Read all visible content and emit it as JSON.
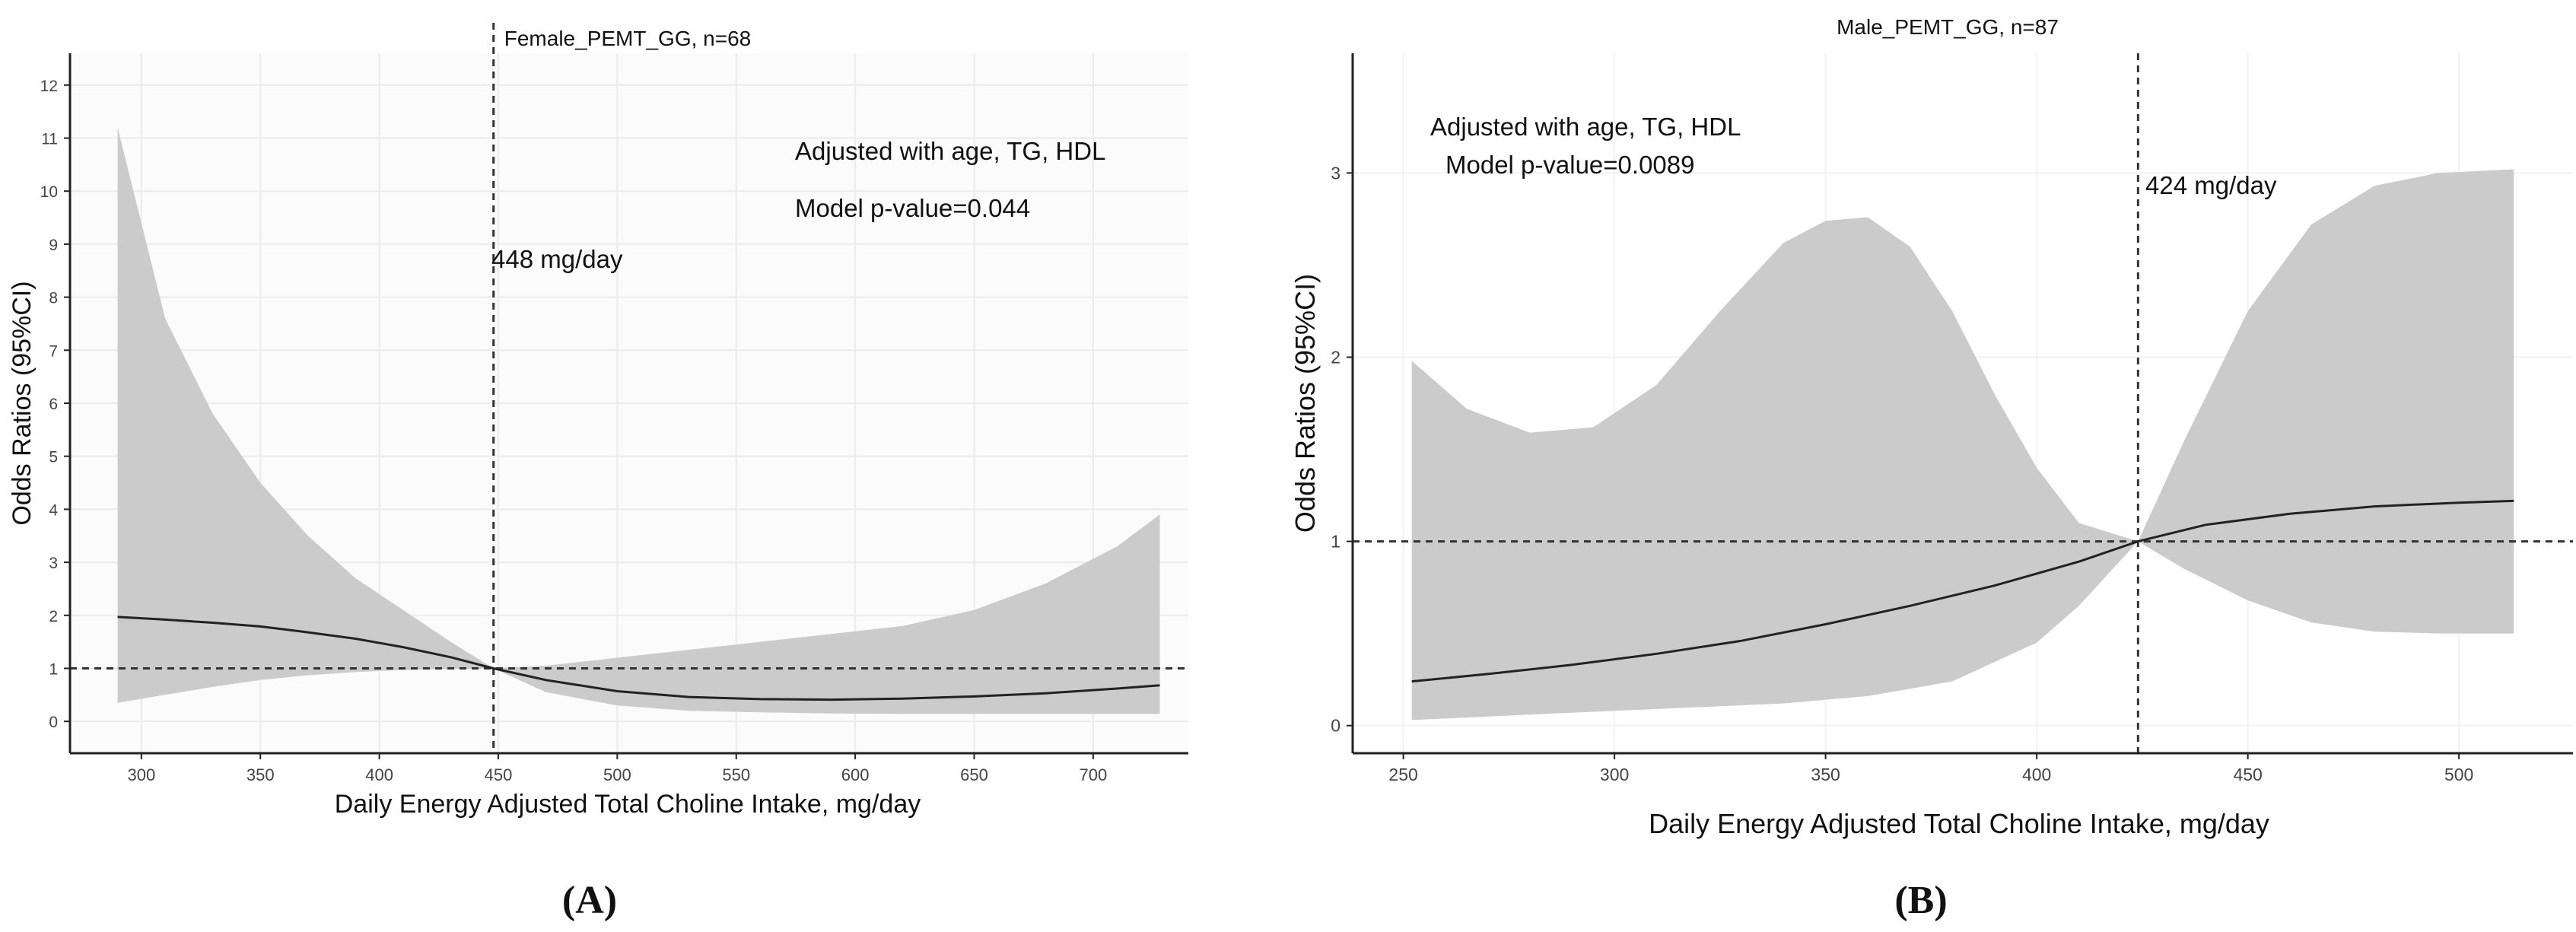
{
  "figure": {
    "panel_labels": [
      "(A)",
      "(B)"
    ]
  },
  "chart_data": [
    {
      "type": "line",
      "panel": "A",
      "title": "Female_PEMT_GG, n=68",
      "xlabel": "Daily Energy Adjusted Total Choline Intake, mg/day",
      "ylabel": "Odds Ratios (95%CI)",
      "xlim": [
        270,
        740
      ],
      "ylim": [
        -0.6,
        12.6
      ],
      "xticks": [
        300,
        350,
        400,
        450,
        500,
        550,
        600,
        650,
        700
      ],
      "yticks": [
        0,
        1,
        2,
        3,
        4,
        5,
        6,
        7,
        8,
        9,
        10,
        11,
        12
      ],
      "grid": true,
      "reference_y": 1,
      "reference_x": 448,
      "annotations": [
        "Adjusted with age, TG, HDL",
        "Model p-value=0.044",
        "448 mg/day"
      ],
      "series": [
        {
          "name": "odds_ratio",
          "x": [
            290,
            310,
            330,
            350,
            370,
            390,
            410,
            430,
            448,
            470,
            500,
            530,
            560,
            590,
            620,
            650,
            680,
            710,
            728
          ],
          "values": [
            1.97,
            1.92,
            1.86,
            1.79,
            1.68,
            1.56,
            1.4,
            1.21,
            1.0,
            0.78,
            0.57,
            0.46,
            0.42,
            0.41,
            0.43,
            0.47,
            0.53,
            0.62,
            0.68
          ]
        },
        {
          "name": "ci_upper",
          "x": [
            290,
            310,
            330,
            350,
            370,
            390,
            410,
            430,
            448,
            470,
            500,
            530,
            560,
            590,
            620,
            650,
            680,
            710,
            728
          ],
          "values": [
            11.2,
            7.6,
            5.8,
            4.5,
            3.5,
            2.7,
            2.1,
            1.5,
            1.0,
            1.05,
            1.2,
            1.35,
            1.5,
            1.65,
            1.8,
            2.1,
            2.6,
            3.3,
            3.9
          ]
        },
        {
          "name": "ci_lower",
          "x": [
            290,
            310,
            330,
            350,
            370,
            390,
            410,
            430,
            448,
            470,
            500,
            530,
            560,
            590,
            620,
            650,
            680,
            710,
            728
          ],
          "values": [
            0.35,
            0.5,
            0.65,
            0.78,
            0.87,
            0.93,
            0.97,
            0.99,
            1.0,
            0.55,
            0.3,
            0.2,
            0.17,
            0.15,
            0.14,
            0.14,
            0.14,
            0.14,
            0.14
          ]
        }
      ]
    },
    {
      "type": "line",
      "panel": "B",
      "title": "Male_PEMT_GG, n=87",
      "xlabel": "Daily Energy Adjusted Total Choline Intake, mg/day",
      "ylabel": "Odds Ratios (95%CI)",
      "xlim": [
        238,
        527
      ],
      "ylim": [
        -0.15,
        3.65
      ],
      "xticks": [
        250,
        300,
        350,
        400,
        450,
        500
      ],
      "yticks": [
        0,
        1,
        2,
        3
      ],
      "grid": true,
      "reference_y": 1,
      "reference_x": 424,
      "annotations": [
        "Adjusted with age, TG, HDL",
        "Model p-value=0.0089",
        "424 mg/day"
      ],
      "series": [
        {
          "name": "odds_ratio",
          "x": [
            252,
            270,
            290,
            310,
            330,
            350,
            370,
            390,
            410,
            424,
            440,
            460,
            480,
            500,
            513
          ],
          "values": [
            0.24,
            0.28,
            0.33,
            0.39,
            0.46,
            0.55,
            0.65,
            0.76,
            0.89,
            1.0,
            1.09,
            1.15,
            1.19,
            1.21,
            1.22
          ]
        },
        {
          "name": "ci_upper",
          "x": [
            252,
            265,
            280,
            295,
            310,
            325,
            340,
            350,
            360,
            370,
            380,
            390,
            400,
            410,
            424,
            435,
            450,
            465,
            480,
            495,
            513
          ],
          "values": [
            1.98,
            1.72,
            1.59,
            1.62,
            1.85,
            2.25,
            2.62,
            2.74,
            2.76,
            2.6,
            2.25,
            1.8,
            1.4,
            1.1,
            1.0,
            1.55,
            2.25,
            2.72,
            2.93,
            3.0,
            3.02
          ]
        },
        {
          "name": "ci_lower",
          "x": [
            252,
            280,
            310,
            340,
            360,
            380,
            400,
            410,
            424,
            435,
            450,
            465,
            480,
            495,
            513
          ],
          "values": [
            0.03,
            0.06,
            0.09,
            0.12,
            0.16,
            0.24,
            0.45,
            0.65,
            1.0,
            0.85,
            0.68,
            0.56,
            0.51,
            0.5,
            0.5
          ]
        }
      ]
    }
  ]
}
